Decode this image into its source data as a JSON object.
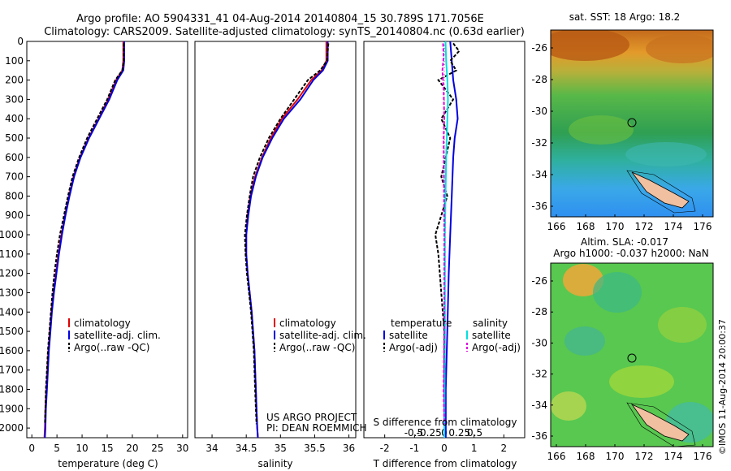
{
  "header": {
    "title_line1": "Argo profile: AO 5904331_41 04-Aug-2014 20140804_15 30.789S 171.7056E",
    "title_line2": "Climatology: CARS2009. Satellite-adjusted climatology: synTS_20140804.nc (0.63d earlier)"
  },
  "colors": {
    "climatology": "#e00000",
    "satellite": "#0000e0",
    "argo": "#000000",
    "sal_satellite": "#00e0e0",
    "sal_argo": "#e000e0"
  },
  "chart_data": [
    {
      "type": "line",
      "panel": "temperature",
      "xlabel": "temperature (deg C)",
      "xlim": [
        -1,
        31
      ],
      "xticks": [
        0,
        5,
        10,
        15,
        20,
        25,
        30
      ],
      "ylim": [
        2050,
        0
      ],
      "yticks": [
        0,
        100,
        200,
        300,
        400,
        500,
        600,
        700,
        800,
        900,
        1000,
        1100,
        1200,
        1300,
        1400,
        1500,
        1600,
        1700,
        1800,
        1900,
        2000
      ],
      "legend": [
        "climatology",
        "satellite-adj. clim.",
        "Argo(..raw -QC)"
      ],
      "series": [
        {
          "name": "climatology",
          "points": [
            [
              18.2,
              0
            ],
            [
              18.2,
              100
            ],
            [
              18.0,
              150
            ],
            [
              16.8,
              200
            ],
            [
              15.2,
              300
            ],
            [
              13.3,
              400
            ],
            [
              11.3,
              500
            ],
            [
              9.6,
              600
            ],
            [
              8.3,
              700
            ],
            [
              7.4,
              800
            ],
            [
              6.6,
              900
            ],
            [
              5.9,
              1000
            ],
            [
              5.3,
              1100
            ],
            [
              4.8,
              1200
            ],
            [
              4.3,
              1300
            ],
            [
              3.9,
              1400
            ],
            [
              3.6,
              1500
            ],
            [
              3.3,
              1600
            ],
            [
              3.1,
              1700
            ],
            [
              2.9,
              1800
            ],
            [
              2.7,
              1900
            ],
            [
              2.6,
              2000
            ],
            [
              2.5,
              2050
            ]
          ]
        },
        {
          "name": "satellite-adj. clim.",
          "points": [
            [
              18.4,
              0
            ],
            [
              18.4,
              100
            ],
            [
              18.2,
              150
            ],
            [
              17.0,
              200
            ],
            [
              15.4,
              300
            ],
            [
              13.4,
              400
            ],
            [
              11.4,
              500
            ],
            [
              9.7,
              600
            ],
            [
              8.4,
              700
            ],
            [
              7.5,
              800
            ],
            [
              6.7,
              900
            ],
            [
              6.0,
              1000
            ],
            [
              5.4,
              1100
            ],
            [
              4.9,
              1200
            ],
            [
              4.4,
              1300
            ],
            [
              4.0,
              1400
            ],
            [
              3.7,
              1500
            ],
            [
              3.4,
              1600
            ],
            [
              3.2,
              1700
            ],
            [
              3.0,
              1800
            ],
            [
              2.8,
              1900
            ],
            [
              2.7,
              2000
            ],
            [
              2.6,
              2050
            ]
          ]
        },
        {
          "name": "Argo(..raw -QC)",
          "points": [
            [
              18.3,
              10
            ],
            [
              18.3,
              100
            ],
            [
              18.0,
              150
            ],
            [
              16.6,
              200
            ],
            [
              15.0,
              300
            ],
            [
              13.0,
              400
            ],
            [
              11.0,
              500
            ],
            [
              9.4,
              600
            ],
            [
              8.1,
              700
            ],
            [
              7.2,
              800
            ],
            [
              6.4,
              900
            ],
            [
              5.6,
              1000
            ],
            [
              5.0,
              1100
            ],
            [
              4.5,
              1200
            ],
            [
              4.1,
              1300
            ],
            [
              3.8,
              1400
            ],
            [
              3.5,
              1500
            ],
            [
              3.2,
              1600
            ],
            [
              3.0,
              1700
            ],
            [
              2.8,
              1800
            ],
            [
              2.7,
              1900
            ],
            [
              2.6,
              1980
            ]
          ]
        }
      ]
    },
    {
      "type": "line",
      "panel": "salinity",
      "xlabel": "salinity",
      "xlim": [
        33.75,
        36.1
      ],
      "xticks": [
        34,
        34.5,
        35,
        35.5,
        36
      ],
      "ylim": [
        2050,
        0
      ],
      "legend": [
        "climatology",
        "satellite-adj. clim.",
        "Argo(..raw -QC)"
      ],
      "series": [
        {
          "name": "climatology",
          "points": [
            [
              35.67,
              0
            ],
            [
              35.67,
              100
            ],
            [
              35.6,
              150
            ],
            [
              35.45,
              200
            ],
            [
              35.25,
              300
            ],
            [
              35.02,
              400
            ],
            [
              34.86,
              500
            ],
            [
              34.73,
              600
            ],
            [
              34.63,
              700
            ],
            [
              34.56,
              800
            ],
            [
              34.52,
              900
            ],
            [
              34.5,
              1000
            ],
            [
              34.5,
              1100
            ],
            [
              34.52,
              1200
            ],
            [
              34.55,
              1300
            ],
            [
              34.58,
              1400
            ],
            [
              34.6,
              1500
            ],
            [
              34.62,
              1600
            ],
            [
              34.63,
              1700
            ],
            [
              34.64,
              1800
            ],
            [
              34.65,
              1900
            ],
            [
              34.66,
              2000
            ],
            [
              34.67,
              2050
            ]
          ]
        },
        {
          "name": "satellite-adj. clim.",
          "points": [
            [
              35.69,
              0
            ],
            [
              35.69,
              100
            ],
            [
              35.62,
              150
            ],
            [
              35.48,
              200
            ],
            [
              35.29,
              300
            ],
            [
              35.05,
              400
            ],
            [
              34.88,
              500
            ],
            [
              34.74,
              600
            ],
            [
              34.64,
              700
            ],
            [
              34.57,
              800
            ],
            [
              34.53,
              900
            ],
            [
              34.5,
              1000
            ],
            [
              34.5,
              1100
            ],
            [
              34.52,
              1200
            ],
            [
              34.55,
              1300
            ],
            [
              34.58,
              1400
            ],
            [
              34.6,
              1500
            ],
            [
              34.62,
              1600
            ],
            [
              34.63,
              1700
            ],
            [
              34.64,
              1800
            ],
            [
              34.65,
              1900
            ],
            [
              34.66,
              2000
            ],
            [
              34.67,
              2050
            ]
          ]
        },
        {
          "name": "Argo(..raw -QC)",
          "points": [
            [
              35.7,
              10
            ],
            [
              35.68,
              100
            ],
            [
              35.58,
              150
            ],
            [
              35.4,
              200
            ],
            [
              35.2,
              300
            ],
            [
              35.0,
              400
            ],
            [
              34.83,
              500
            ],
            [
              34.7,
              600
            ],
            [
              34.6,
              700
            ],
            [
              34.55,
              800
            ],
            [
              34.51,
              900
            ],
            [
              34.48,
              1000
            ],
            [
              34.49,
              1100
            ],
            [
              34.51,
              1200
            ],
            [
              34.54,
              1300
            ],
            [
              34.57,
              1400
            ],
            [
              34.59,
              1500
            ],
            [
              34.61,
              1600
            ],
            [
              34.62,
              1700
            ],
            [
              34.63,
              1800
            ],
            [
              34.64,
              1900
            ],
            [
              34.65,
              1980
            ]
          ]
        }
      ],
      "annotation": [
        "US ARGO PROJECT",
        "PI: DEAN ROEMMICH"
      ]
    },
    {
      "type": "line",
      "panel": "difference",
      "xlabel": "T difference from climatology",
      "xlabel_top": "S difference from climatology",
      "xlim": [
        -2.7,
        2.7
      ],
      "xticks": [
        -2,
        -1,
        0,
        1,
        2
      ],
      "xticks_top": [
        -0.5,
        -0.25,
        0,
        0.25,
        0.5
      ],
      "ylim": [
        2050,
        0
      ],
      "legend_temperature_title": "temperature",
      "legend_salinity_title": "salinity",
      "legend_temperature": [
        "satellite",
        "Argo(-adj)"
      ],
      "legend_salinity": [
        "satellite",
        "Argo(-adj)"
      ],
      "series": [
        {
          "name": "T satellite",
          "points": [
            [
              0.2,
              0
            ],
            [
              0.25,
              100
            ],
            [
              0.3,
              200
            ],
            [
              0.4,
              300
            ],
            [
              0.45,
              400
            ],
            [
              0.35,
              500
            ],
            [
              0.3,
              600
            ],
            [
              0.25,
              800
            ],
            [
              0.2,
              1000
            ],
            [
              0.15,
              1200
            ],
            [
              0.1,
              1500
            ],
            [
              0.05,
              1800
            ],
            [
              0.05,
              2050
            ]
          ]
        },
        {
          "name": "T Argo(-adj)",
          "points": [
            [
              0.3,
              10
            ],
            [
              0.5,
              50
            ],
            [
              0.2,
              100
            ],
            [
              0.4,
              150
            ],
            [
              -0.2,
              200
            ],
            [
              0.3,
              300
            ],
            [
              -0.1,
              400
            ],
            [
              0.2,
              500
            ],
            [
              -0.1,
              700
            ],
            [
              0.1,
              800
            ],
            [
              -0.3,
              1000
            ],
            [
              -0.2,
              1100
            ],
            [
              -0.1,
              1300
            ],
            [
              0,
              1500
            ],
            [
              0,
              1800
            ],
            [
              0,
              1980
            ]
          ]
        },
        {
          "name": "S satellite",
          "points": [
            [
              0.02,
              0
            ],
            [
              0.03,
              100
            ],
            [
              0.05,
              200
            ],
            [
              0.06,
              300
            ],
            [
              0.05,
              400
            ],
            [
              0.03,
              600
            ],
            [
              0.02,
              800
            ],
            [
              0.01,
              1000
            ],
            [
              0.01,
              1500
            ],
            [
              0.0,
              2050
            ]
          ]
        },
        {
          "name": "S Argo(-adj)",
          "points": [
            [
              -0.02,
              10
            ],
            [
              -0.01,
              80
            ],
            [
              -0.03,
              150
            ],
            [
              -0.01,
              250
            ],
            [
              0.0,
              400
            ],
            [
              -0.01,
              500
            ],
            [
              0.0,
              1000
            ],
            [
              0.0,
              1500
            ],
            [
              -0.01,
              1800
            ],
            [
              0.0,
              1980
            ]
          ]
        }
      ]
    }
  ],
  "map_sst": {
    "title": "sat. SST: 18 Argo: 18.2",
    "xticks": [
      "166",
      "168",
      "170",
      "172",
      "174",
      "176"
    ],
    "yticks": [
      "-26",
      "-28",
      "-30",
      "-32",
      "-34",
      "-36"
    ]
  },
  "map_sla": {
    "title_line1": "Altim. SLA: -0.017",
    "title_line2": "Argo h1000: -0.037 h2000: NaN",
    "xticks": [
      "166",
      "168",
      "170",
      "172",
      "174",
      "176"
    ],
    "yticks": [
      "-26",
      "-28",
      "-30",
      "-32",
      "-34",
      "-36"
    ]
  },
  "footer": {
    "side_label": "©IMOS 11-Aug-2014 20:00:37"
  }
}
